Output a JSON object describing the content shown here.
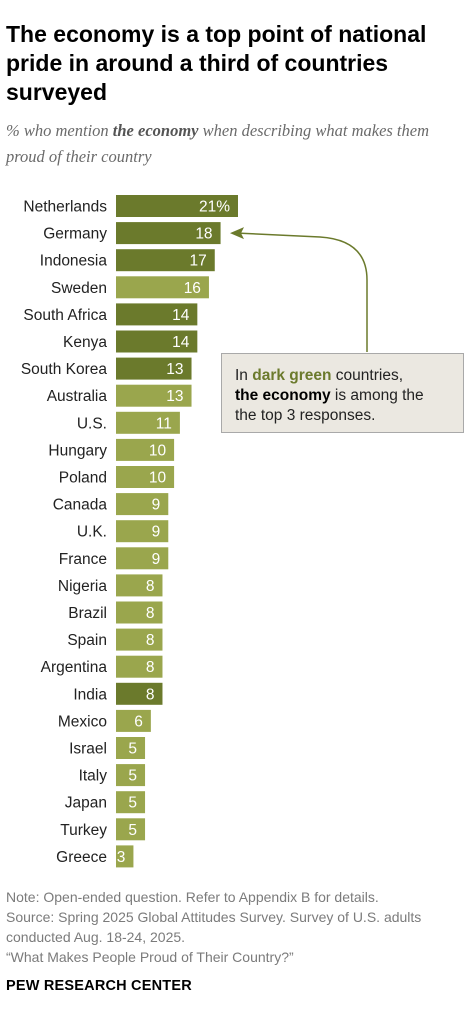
{
  "title": "The economy is a top point of national pride in around a third of countries surveyed",
  "subtitle": {
    "prefix": "% who mention ",
    "emphasis": "the economy",
    "suffix": " when describing what makes them proud of their country"
  },
  "colors": {
    "dark_green": "#6b7a2c",
    "light_green": "#9aa64d",
    "callout_bg": "#ebe8e1",
    "label_text": "#ffffff"
  },
  "chart_data": {
    "type": "bar",
    "orientation": "horizontal",
    "categories": [
      "Netherlands",
      "Germany",
      "Indonesia",
      "Sweden",
      "South Africa",
      "Kenya",
      "South Korea",
      "Australia",
      "U.S.",
      "Hungary",
      "Poland",
      "Canada",
      "U.K.",
      "France",
      "Nigeria",
      "Brazil",
      "Spain",
      "Argentina",
      "India",
      "Mexico",
      "Israel",
      "Italy",
      "Japan",
      "Turkey",
      "Greece"
    ],
    "values": [
      21,
      18,
      17,
      16,
      14,
      14,
      13,
      13,
      11,
      10,
      10,
      9,
      9,
      9,
      8,
      8,
      8,
      8,
      8,
      6,
      5,
      5,
      5,
      5,
      3
    ],
    "value_labels": [
      "21%",
      "18",
      "17",
      "16",
      "14",
      "14",
      "13",
      "13",
      "11",
      "10",
      "10",
      "9",
      "9",
      "9",
      "8",
      "8",
      "8",
      "8",
      "8",
      "6",
      "5",
      "5",
      "5",
      "5",
      "3"
    ],
    "top3": [
      true,
      true,
      true,
      false,
      true,
      true,
      true,
      false,
      false,
      false,
      false,
      false,
      false,
      false,
      false,
      false,
      false,
      false,
      true,
      false,
      false,
      false,
      false,
      false,
      false
    ],
    "xlim": [
      0,
      21
    ]
  },
  "callout": {
    "part1": "In ",
    "highlight": "dark green",
    "part2": " countries,",
    "bold": "the economy",
    "part3": " is among the",
    "line3": "the top 3 responses."
  },
  "notes": {
    "note": "Note: Open-ended question. Refer to Appendix B for details.",
    "source": "Source: Spring 2025 Global Attitudes Survey. Survey of U.S. adults",
    "source2": "conducted Aug. 18-24, 2025.",
    "report": "“What Makes People Proud of Their Country?”"
  },
  "org": "PEW RESEARCH CENTER"
}
